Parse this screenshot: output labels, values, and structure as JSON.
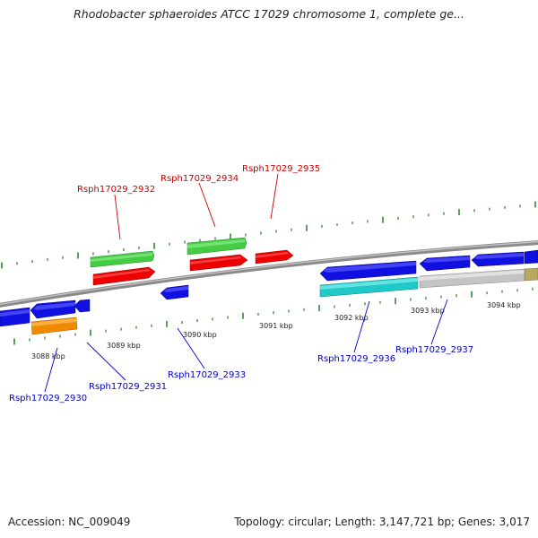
{
  "title": "Rhodobacter sphaeroides ATCC 17029 chromosome 1, complete ge...",
  "footer": {
    "accession": "Accession: NC_009049",
    "summary": "Topology: circular; Length: 3,147,721 bp; Genes: 3,017"
  },
  "colors": {
    "backbone": "#8a8a8a",
    "tick": "#2e8b2e",
    "kbp_label": "#222222",
    "red_label": "#cc0000",
    "blue_label": "#0000cc",
    "gene_blue": "#1010e0",
    "gene_green": "#44cc44",
    "gene_red": "#ee0000",
    "gene_orange": "#f08a00",
    "gene_cyan": "#20c8c8",
    "gene_gray": "#c4c4c4",
    "gene_olive": "#b8a860"
  },
  "kbp_labels": [
    "3088 kbp",
    "3089 kbp",
    "3090 kbp",
    "3091 kbp",
    "3092 kbp",
    "3093 kbp",
    "3094 kbp"
  ],
  "gene_labels": {
    "top": [
      "Rsph17029_2932",
      "Rsph17029_2934",
      "Rsph17029_2935"
    ],
    "bottom": [
      "Rsph17029_2930",
      "Rsph17029_2931",
      "Rsph17029_2933",
      "Rsph17029_2936",
      "Rsph17029_2937"
    ]
  }
}
